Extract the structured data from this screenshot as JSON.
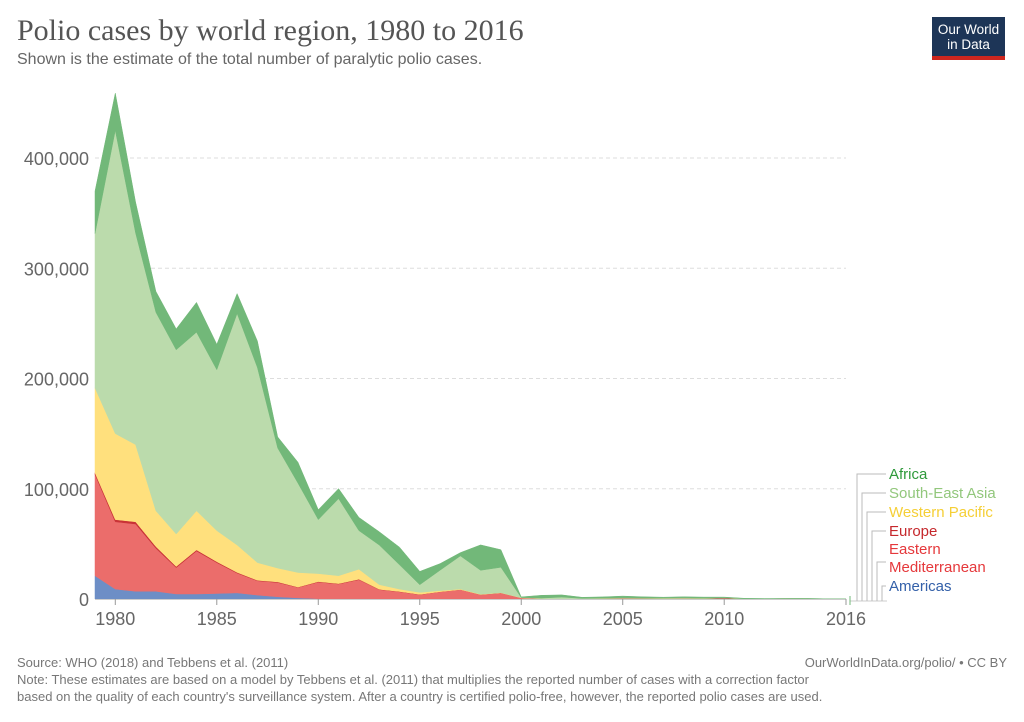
{
  "header": {
    "title": "Polio cases by world region, 1980 to 2016",
    "subtitle": "Shown is the estimate of the total number of paralytic polio cases.",
    "logo_line1": "Our World",
    "logo_line2": "in Data"
  },
  "footer": {
    "source": "Source: WHO (2018) and Tebbens et al. (2011)",
    "url": "OurWorldInData.org/polio/ • CC BY",
    "note_line1": "Note: These estimates are based on a model by Tebbens et al. (2011) that multiplies the reported number of cases with a correction factor",
    "note_line2": "based on the quality of each country's surveillance system. After a country is certified polio-free, however, the reported polio cases are used."
  },
  "chart_data": {
    "type": "area",
    "stacked": true,
    "title": "Polio cases by world region, 1980 to 2016",
    "xlabel": "",
    "ylabel": "",
    "xlim": [
      1979,
      2016
    ],
    "ylim": [
      0,
      460000
    ],
    "grid": true,
    "legend_position": "right",
    "x_ticks": [
      1980,
      1985,
      1990,
      1995,
      2000,
      2005,
      2010,
      2016
    ],
    "y_ticks": [
      0,
      100000,
      200000,
      300000,
      400000
    ],
    "y_tick_labels": [
      "0",
      "100,000",
      "200,000",
      "300,000",
      "400,000"
    ],
    "x": [
      1979,
      1980,
      1981,
      1982,
      1983,
      1984,
      1985,
      1986,
      1987,
      1988,
      1989,
      1990,
      1991,
      1992,
      1993,
      1994,
      1995,
      1996,
      1997,
      1998,
      1999,
      2000,
      2001,
      2002,
      2003,
      2004,
      2005,
      2006,
      2007,
      2008,
      2009,
      2010,
      2011,
      2012,
      2013,
      2014,
      2015,
      2016
    ],
    "series": [
      {
        "name": "Americas",
        "color": "#6d8ec6",
        "legend_color": "#3360a9",
        "values": [
          21000,
          9000,
          7000,
          7000,
          4500,
          4500,
          5000,
          5500,
          3500,
          2000,
          1000,
          300,
          100,
          50,
          20,
          10,
          5,
          0,
          0,
          0,
          0,
          0,
          0,
          0,
          0,
          0,
          0,
          0,
          0,
          0,
          0,
          0,
          0,
          0,
          0,
          0,
          0,
          0
        ]
      },
      {
        "name": "Eastern Mediterranean",
        "color": "#eb6d6b",
        "legend_color": "#e5383b",
        "values": [
          92000,
          61000,
          61000,
          39000,
          24000,
          39000,
          28000,
          18000,
          13000,
          13000,
          9500,
          15000,
          13500,
          17500,
          8500,
          6500,
          4000,
          6500,
          8500,
          4000,
          5500,
          1000,
          300,
          200,
          300,
          400,
          600,
          500,
          400,
          500,
          400,
          300,
          200,
          150,
          300,
          300,
          100,
          40
        ]
      },
      {
        "name": "Europe",
        "color": "#c93236",
        "legend_color": "#c5282c",
        "values": [
          1500,
          2000,
          2000,
          1500,
          1000,
          1000,
          800,
          600,
          500,
          500,
          300,
          500,
          400,
          400,
          300,
          300,
          200,
          100,
          50,
          30,
          20,
          10,
          5,
          5,
          5,
          5,
          5,
          5,
          5,
          5,
          5,
          500,
          5,
          5,
          5,
          5,
          5,
          5
        ]
      },
      {
        "name": "Western Pacific",
        "color": "#ffe07d",
        "legend_color": "#f5cf36",
        "values": [
          77000,
          78000,
          70000,
          32500,
          29500,
          35500,
          28200,
          24900,
          16000,
          12500,
          13200,
          7200,
          7100,
          9100,
          4200,
          2200,
          1800,
          1000,
          500,
          300,
          200,
          50,
          20,
          20,
          10,
          10,
          10,
          10,
          10,
          10,
          10,
          10,
          10,
          10,
          10,
          10,
          10,
          10
        ]
      },
      {
        "name": "South-East Asia",
        "color": "#bbdbac",
        "legend_color": "#92c77c",
        "values": [
          140000,
          275000,
          192000,
          180000,
          167000,
          162000,
          146000,
          210000,
          177000,
          109000,
          81000,
          49000,
          70000,
          35000,
          36000,
          22000,
          7000,
          18500,
          30000,
          21700,
          23000,
          300,
          500,
          1500,
          200,
          300,
          400,
          300,
          400,
          500,
          300,
          200,
          100,
          50,
          50,
          100,
          50,
          20
        ]
      },
      {
        "name": "Africa",
        "color": "#72b879",
        "legend_color": "#2f9a3b",
        "values": [
          38500,
          34000,
          28000,
          19000,
          19000,
          27000,
          23000,
          18000,
          24000,
          10000,
          19000,
          9000,
          9000,
          12000,
          12000,
          16000,
          12000,
          6000,
          3000,
          23000,
          16000,
          500,
          2500,
          2000,
          1000,
          1200,
          1600,
          1200,
          800,
          1000,
          1000,
          700,
          300,
          200,
          100,
          100,
          50,
          20
        ]
      }
    ]
  }
}
